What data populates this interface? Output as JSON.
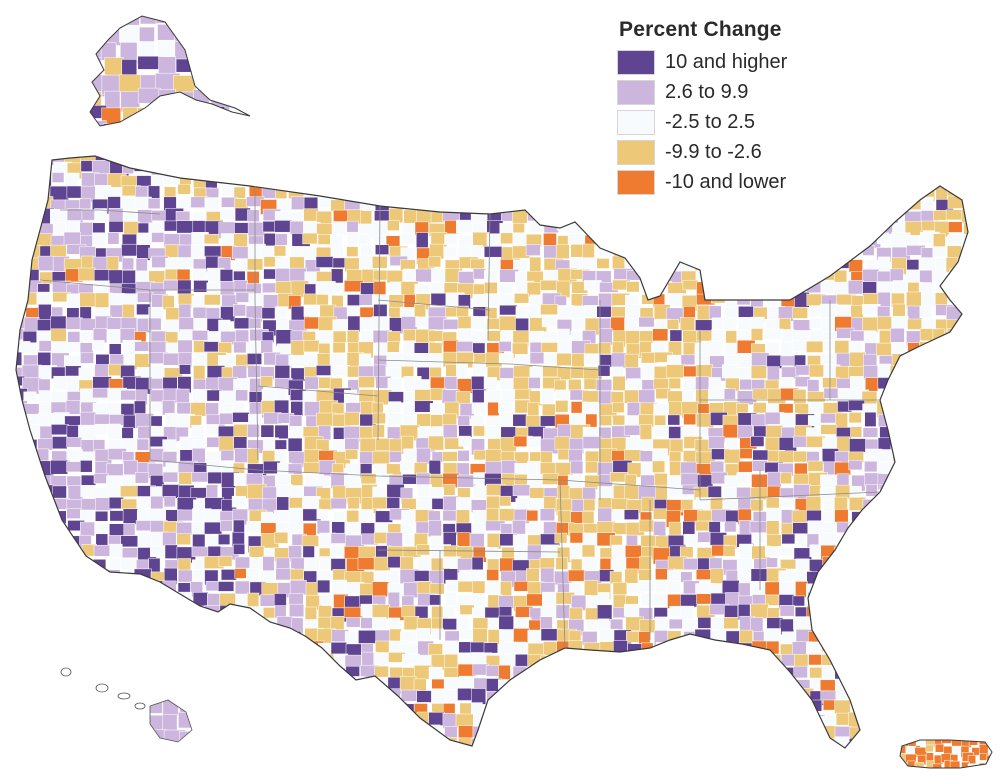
{
  "legend": {
    "title": "Percent Change",
    "classes": [
      {
        "label": "10 and higher",
        "color": "#5f4591",
        "icon": "swatch-dark-purple"
      },
      {
        "label": "2.6 to 9.9",
        "color": "#cdb6dd",
        "icon": "swatch-light-purple"
      },
      {
        "label": "-2.5 to 2.5",
        "color": "#f7fbfd",
        "icon": "swatch-near-white"
      },
      {
        "label": "-9.9 to -2.6",
        "color": "#ecc878",
        "icon": "swatch-light-orange"
      },
      {
        "label": "-10 and lower",
        "color": "#ee7b2f",
        "icon": "swatch-orange"
      }
    ]
  },
  "map": {
    "type": "choropleth",
    "regions": [
      "contiguous-us",
      "alaska",
      "hawaii",
      "puerto-rico"
    ],
    "no_data_color": "#ffffff",
    "outline_color": "#3a3a3a"
  }
}
